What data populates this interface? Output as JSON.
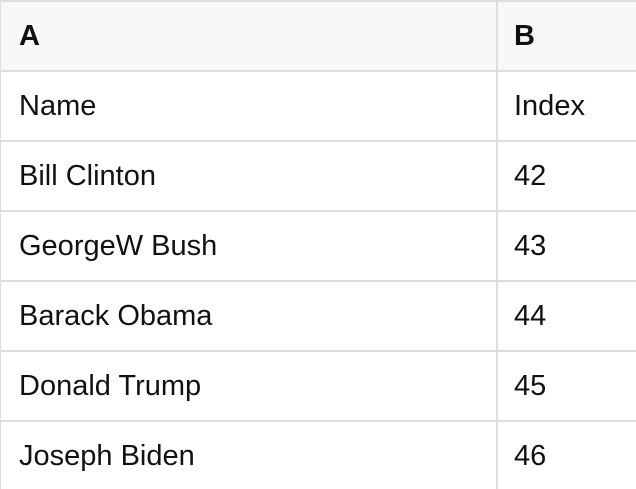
{
  "table": {
    "columns": [
      {
        "label": "A"
      },
      {
        "label": "B"
      }
    ],
    "rows": [
      [
        "Name",
        "Index"
      ],
      [
        "Bill Clinton",
        "42"
      ],
      [
        "GeorgeW Bush",
        "43"
      ],
      [
        "Barack Obama",
        "44"
      ],
      [
        "Donald Trump",
        "45"
      ],
      [
        "Joseph Biden",
        "46"
      ]
    ]
  },
  "colors": {
    "header_bg": "#f8f8f8",
    "row_bg": "#ffffff",
    "border": "#dddddd",
    "text": "#111111"
  }
}
